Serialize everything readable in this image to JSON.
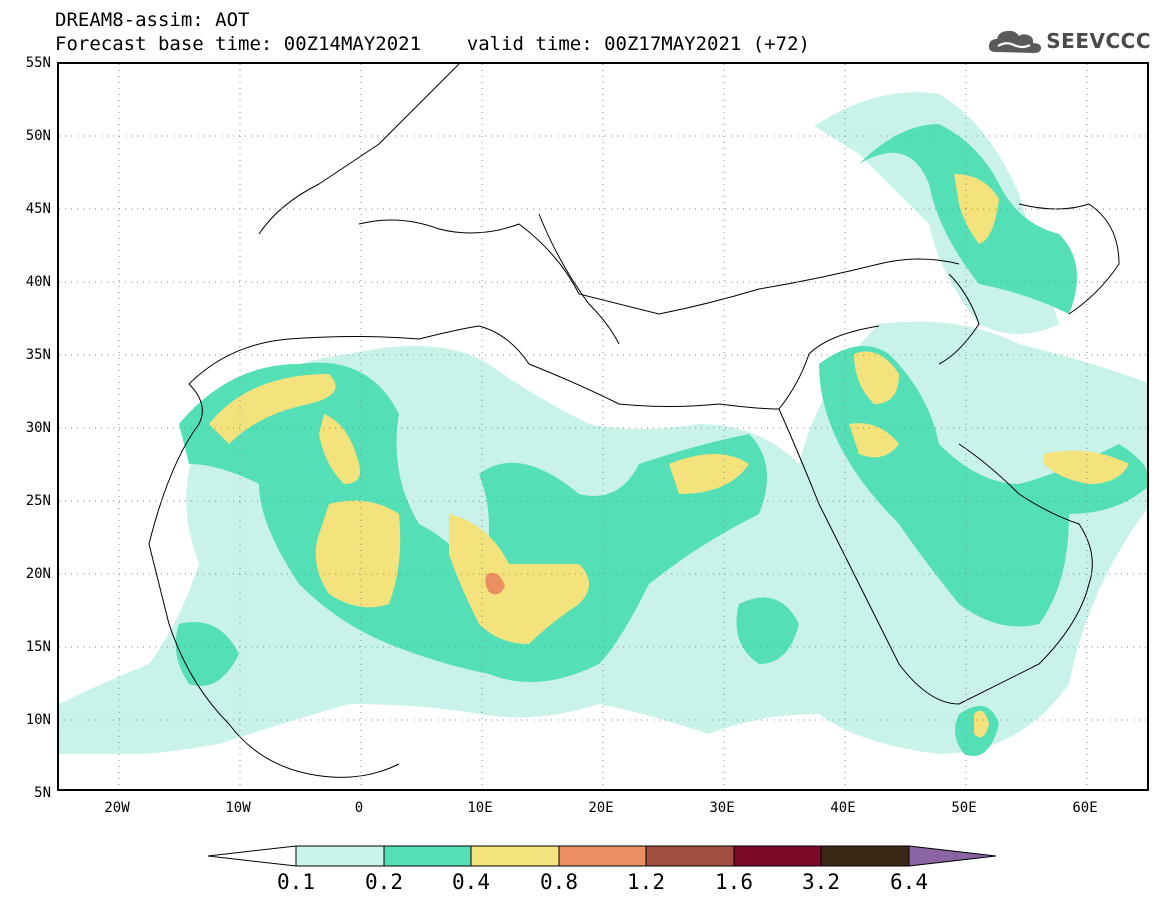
{
  "header": {
    "title_line1": "DREAM8-assim: AOT",
    "title_line2": "Forecast base time: 00Z14MAY2021    valid time: 00Z17MAY2021 (+72)"
  },
  "logo": {
    "text": "SEEVCCC",
    "icon": "cloud-icon"
  },
  "map": {
    "region": "North Africa, Europe and Middle East",
    "lon_range": [
      -25,
      65
    ],
    "lat_range": [
      5,
      55
    ],
    "grid": "dotted",
    "lat_labels": [
      "55N",
      "50N",
      "45N",
      "40N",
      "35N",
      "30N",
      "25N",
      "20N",
      "15N",
      "10N",
      "5N"
    ],
    "lon_labels": [
      "20W",
      "10W",
      "0",
      "10E",
      "20E",
      "30E",
      "40E",
      "50E",
      "60E"
    ]
  },
  "colorbar": {
    "colors": [
      "#ffffff",
      "#c9f2ea",
      "#55dfb7",
      "#f4e27d",
      "#eb8f63",
      "#a24f40",
      "#7d0a25",
      "#3b2715",
      "#8a64a3"
    ],
    "labels": [
      "0.1",
      "0.2",
      "0.4",
      "0.8",
      "1.2",
      "1.6",
      "3.2",
      "6.4"
    ]
  }
}
